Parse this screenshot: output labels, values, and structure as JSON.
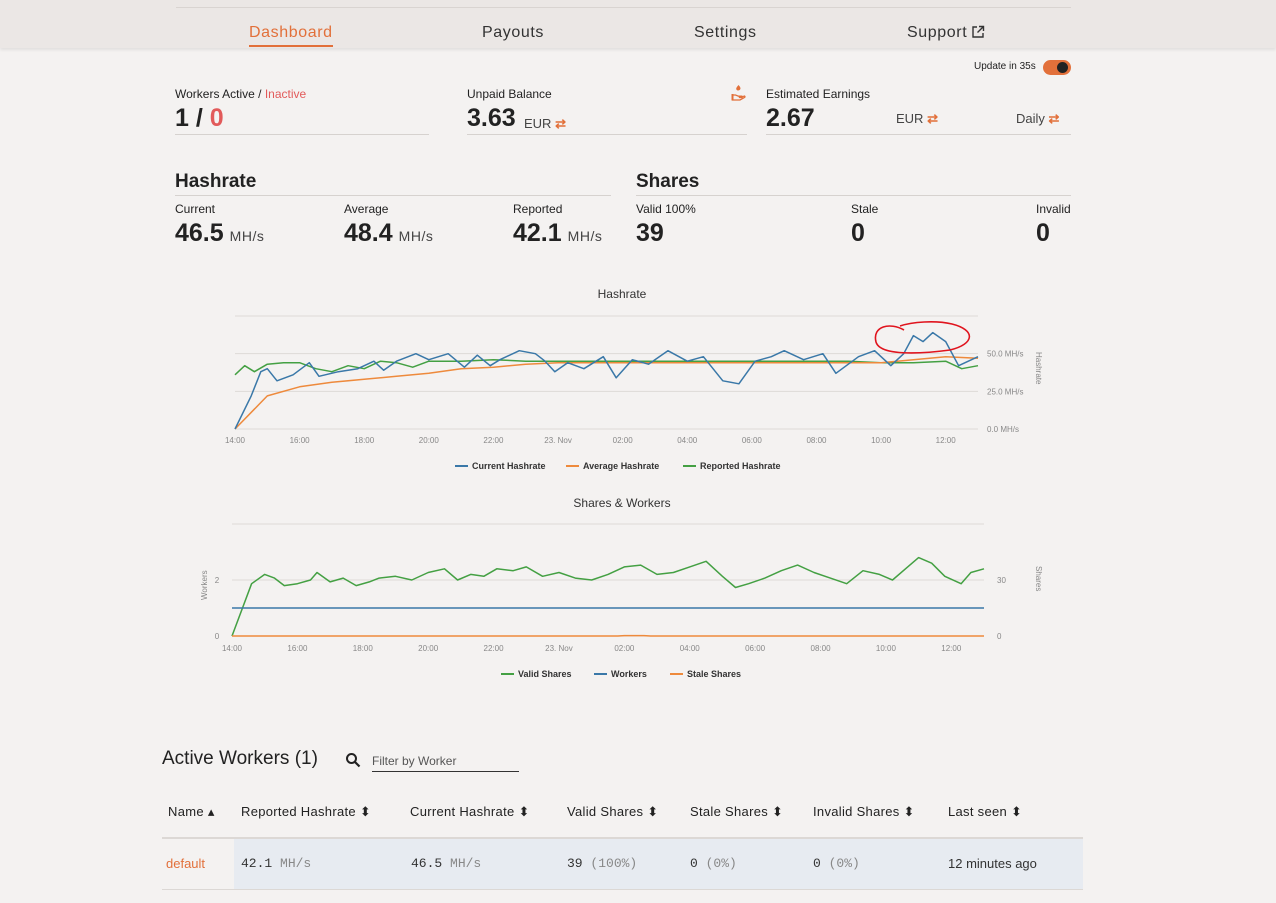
{
  "nav": {
    "items": [
      "Dashboard",
      "Payouts",
      "Settings",
      "Support"
    ],
    "active": "Dashboard"
  },
  "update": {
    "label": "Update in 35s",
    "enabled": true
  },
  "workers_active": {
    "label": "Workers Active",
    "sep": " / ",
    "inactive_label": "Inactive",
    "active": "1",
    "slash": " / ",
    "inactive": "0"
  },
  "unpaid": {
    "label": "Unpaid Balance",
    "value": "3.63",
    "currency": "EUR"
  },
  "estimated": {
    "label": "Estimated Earnings",
    "value": "2.67",
    "currency": "EUR",
    "period": "Daily"
  },
  "hashrate": {
    "title": "Hashrate",
    "current": {
      "label": "Current",
      "value": "46.5",
      "unit": "MH/s"
    },
    "average": {
      "label": "Average",
      "value": "48.4",
      "unit": "MH/s"
    },
    "reported": {
      "label": "Reported",
      "value": "42.1",
      "unit": "MH/s"
    }
  },
  "shares": {
    "title": "Shares",
    "valid": {
      "label": "Valid 100%",
      "value": "39"
    },
    "stale": {
      "label": "Stale",
      "value": "0"
    },
    "invalid": {
      "label": "Invalid",
      "value": "0"
    }
  },
  "colors": {
    "accent": "#e2703a",
    "current": "#3a78a8",
    "average": "#ee8a3c",
    "reported": "#44a043",
    "annotation": "#e0141e"
  },
  "chart_data": [
    {
      "type": "line",
      "title": "Hashrate",
      "x_ticks": [
        "14:00",
        "16:00",
        "18:00",
        "20:00",
        "22:00",
        "23. Nov",
        "02:00",
        "04:00",
        "06:00",
        "08:00",
        "10:00",
        "12:00"
      ],
      "y_ticks": [
        "0.0 MH/s",
        "25.0 MH/s",
        "50.0 MH/s"
      ],
      "ylabel": "Hashrate",
      "ylim": [
        0,
        75
      ],
      "xlim": [
        0,
        23
      ],
      "series": [
        {
          "name": "Current Hashrate",
          "color": "#3a78a8",
          "x": [
            0,
            0.5,
            0.8,
            1.0,
            1.3,
            1.8,
            2.3,
            2.6,
            3.2,
            3.8,
            4.3,
            4.6,
            5.0,
            5.6,
            6.0,
            6.6,
            7.1,
            7.5,
            7.9,
            8.2,
            8.8,
            9.3,
            9.6,
            9.9,
            10.3,
            10.8,
            11.4,
            11.8,
            12.3,
            12.8,
            13.4,
            14.0,
            14.5,
            15.1,
            15.6,
            16.1,
            16.6,
            17.0,
            17.6,
            18.2,
            18.6,
            19.3,
            19.8,
            20.3,
            20.7,
            21.0,
            21.3,
            21.6,
            22.0,
            22.4,
            23.0
          ],
          "y": [
            0,
            22,
            38,
            40,
            32,
            36,
            44,
            35,
            38,
            40,
            45,
            39,
            45,
            50,
            46,
            50,
            41,
            49,
            42,
            46,
            52,
            50,
            45,
            38,
            44,
            40,
            48,
            34,
            46,
            43,
            52,
            45,
            48,
            32,
            30,
            45,
            48,
            52,
            46,
            50,
            37,
            48,
            52,
            42,
            50,
            62,
            58,
            64,
            58,
            42,
            48
          ]
        },
        {
          "name": "Average Hashrate",
          "color": "#ee8a3c",
          "x": [
            0,
            1,
            2,
            3,
            4,
            5,
            6,
            7,
            8,
            9,
            10,
            11,
            12,
            13,
            14,
            15,
            16,
            17,
            18,
            19,
            20,
            20.5,
            21,
            22,
            23
          ],
          "y": [
            0,
            22,
            28,
            31,
            33,
            35,
            37,
            40,
            41,
            43,
            44,
            44,
            44,
            44,
            44,
            44,
            44,
            44,
            44,
            44,
            44,
            45,
            46,
            48,
            47
          ]
        },
        {
          "name": "Reported Hashrate",
          "color": "#44a043",
          "x": [
            0,
            0.3,
            0.6,
            1.0,
            1.5,
            2.0,
            2.5,
            3.0,
            3.5,
            4.0,
            4.5,
            5.0,
            5.5,
            6.0,
            7.0,
            8.0,
            9.0,
            10.0,
            11.0,
            12.0,
            13.0,
            14.0,
            15.0,
            16.0,
            17.0,
            18.0,
            19.0,
            20.0,
            21.0,
            22.0,
            22.5,
            23.0
          ],
          "y": [
            36,
            42,
            38,
            43,
            44,
            44,
            40,
            38,
            42,
            40,
            45,
            44,
            41,
            45,
            45,
            46,
            45,
            45,
            45,
            45,
            45,
            45,
            45,
            45,
            45,
            45,
            45,
            44,
            44,
            45,
            40,
            42
          ]
        }
      ]
    },
    {
      "type": "line",
      "title": "Shares & Workers",
      "x_ticks": [
        "14:00",
        "16:00",
        "18:00",
        "20:00",
        "22:00",
        "23. Nov",
        "02:00",
        "04:00",
        "06:00",
        "08:00",
        "10:00",
        "12:00"
      ],
      "y_left_ticks": [
        "0",
        "2"
      ],
      "y_right_ticks": [
        "0",
        "30"
      ],
      "ylabel_left": "Workers",
      "ylabel_right": "Shares",
      "ylim_right": [
        0,
        60
      ],
      "xlim": [
        0,
        23
      ],
      "series": [
        {
          "name": "Valid Shares",
          "color": "#44a043",
          "x": [
            0,
            0.6,
            1.0,
            1.3,
            1.6,
            2.0,
            2.4,
            2.6,
            3.0,
            3.4,
            3.8,
            4.2,
            4.5,
            5.0,
            5.5,
            6.0,
            6.5,
            6.9,
            7.3,
            7.7,
            8.1,
            8.6,
            9.0,
            9.5,
            10.0,
            10.5,
            11.0,
            11.5,
            12.0,
            12.5,
            13.0,
            13.5,
            14.0,
            14.5,
            15.0,
            15.4,
            15.8,
            16.3,
            16.8,
            17.3,
            17.8,
            18.3,
            18.8,
            19.3,
            19.8,
            20.2,
            20.6,
            21.0,
            21.4,
            21.8,
            22.3,
            22.6,
            23.0
          ],
          "y": [
            0,
            28,
            33,
            31,
            27,
            28,
            30,
            34,
            29,
            31,
            27,
            29,
            31,
            32,
            30,
            34,
            36,
            30,
            33,
            32,
            36,
            35,
            37,
            32,
            34,
            31,
            30,
            33,
            37,
            38,
            33,
            34,
            37,
            40,
            32,
            26,
            28,
            31,
            35,
            38,
            34,
            31,
            28,
            35,
            33,
            30,
            36,
            42,
            39,
            32,
            28,
            34,
            36
          ]
        },
        {
          "name": "Workers",
          "color": "#3a78a8",
          "x": [
            0,
            23
          ],
          "y": [
            1,
            1
          ]
        },
        {
          "name": "Stale Shares",
          "color": "#ee8a3c",
          "x": [
            0,
            11.8,
            12.0,
            12.6,
            12.8,
            23
          ],
          "y": [
            0,
            0,
            0.2,
            0.2,
            0,
            0
          ]
        }
      ]
    }
  ],
  "table": {
    "title": "Active Workers",
    "count": "(1)",
    "filter_placeholder": "Filter by Worker",
    "columns": [
      "Name",
      "Reported Hashrate",
      "Current Hashrate",
      "Valid Shares",
      "Stale Shares",
      "Invalid Shares",
      "Last seen"
    ],
    "rows": [
      {
        "name": "default",
        "reported": "42.1",
        "reported_unit": "MH/s",
        "current": "46.5",
        "current_unit": "MH/s",
        "valid": "39",
        "valid_pct": "(100%)",
        "stale": "0",
        "stale_pct": "(0%)",
        "invalid": "0",
        "invalid_pct": "(0%)",
        "last_seen": "12 minutes ago"
      }
    ]
  }
}
